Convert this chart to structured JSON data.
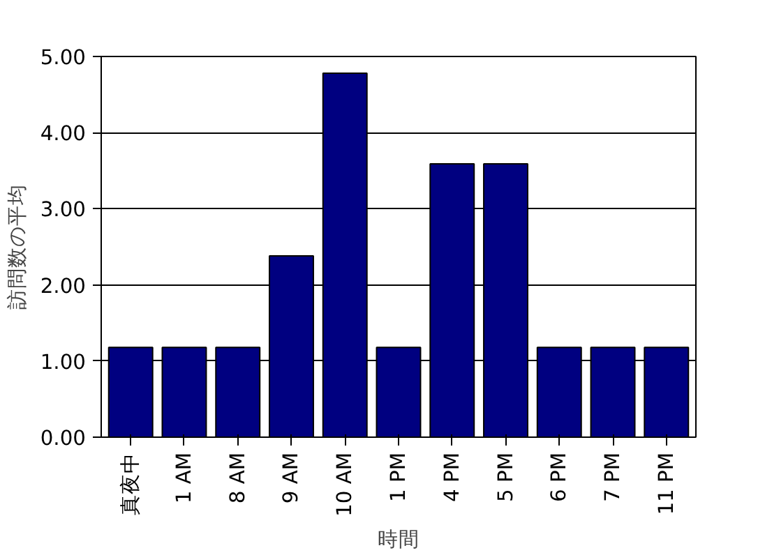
{
  "chart_data": {
    "type": "bar",
    "xlabel": "時間",
    "ylabel": "訪問数の平均",
    "categories": [
      "真夜中",
      "1 AM",
      "8 AM",
      "9 AM",
      "10 AM",
      "1 PM",
      "4 PM",
      "5 PM",
      "6 PM",
      "7 PM",
      "11 PM"
    ],
    "values": [
      1.18,
      1.18,
      1.18,
      2.38,
      4.78,
      1.18,
      3.59,
      3.59,
      1.18,
      1.18,
      1.18
    ],
    "color": "#000080",
    "ylim": [
      0,
      5
    ],
    "yticks": [
      {
        "value": 0,
        "label": "0.00"
      },
      {
        "value": 1,
        "label": "1.00"
      },
      {
        "value": 2,
        "label": "2.00"
      },
      {
        "value": 3,
        "label": "3.00"
      },
      {
        "value": 4,
        "label": "4.00"
      },
      {
        "value": 5,
        "label": "5.00"
      }
    ],
    "grid": "y"
  }
}
